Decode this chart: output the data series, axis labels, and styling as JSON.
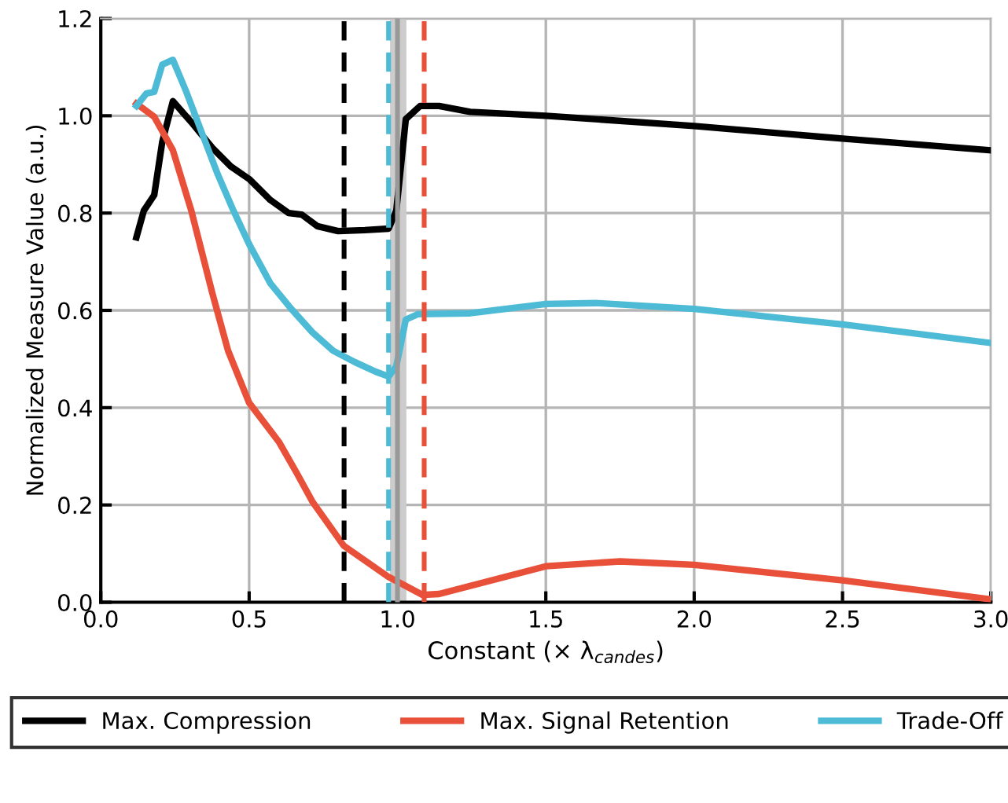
{
  "chart_data": {
    "type": "line",
    "xlabel": "Constant (× λ$_{candes}$)",
    "ylabel": "Normalized Measure Value (a.u.)",
    "xlim": [
      0,
      3
    ],
    "ylim": [
      0,
      1.2
    ],
    "xticks": [
      {
        "value": 0,
        "label": "0.0"
      },
      {
        "value": 0.5,
        "label": "0.5"
      },
      {
        "value": 1,
        "label": "1.0"
      },
      {
        "value": 1.5,
        "label": "1.5"
      },
      {
        "value": 2,
        "label": "2.0"
      },
      {
        "value": 2.5,
        "label": "2.5"
      },
      {
        "value": 3,
        "label": "3.0"
      }
    ],
    "yticks": [
      {
        "value": 0,
        "label": "0.0"
      },
      {
        "value": 0.2,
        "label": "0.2"
      },
      {
        "value": 0.4,
        "label": "0.4"
      },
      {
        "value": 0.6,
        "label": "0.6"
      },
      {
        "value": 0.8,
        "label": "0.8"
      },
      {
        "value": 1,
        "label": "1.0"
      },
      {
        "value": 1.2,
        "label": "1.2"
      }
    ],
    "grid": true,
    "legend": "bottom",
    "marker": "none",
    "line_style": "solid",
    "series": [
      {
        "name": "Max. Compression",
        "color": "#000000",
        "x": [
          0.12,
          0.145,
          0.18,
          0.207,
          0.243,
          0.305,
          0.376,
          0.438,
          0.5,
          0.571,
          0.633,
          0.677,
          0.73,
          0.8,
          0.89,
          0.97,
          0.996,
          1.028,
          1.076,
          1.14,
          1.245,
          1.5,
          2.0,
          2.5,
          3.0
        ],
        "values": [
          0.75,
          0.805,
          0.837,
          0.946,
          1.03,
          0.987,
          0.934,
          0.896,
          0.87,
          0.827,
          0.8,
          0.797,
          0.773,
          0.763,
          0.765,
          0.768,
          0.805,
          0.993,
          1.02,
          1.02,
          1.008,
          1.0,
          0.979,
          0.953,
          0.929
        ]
      },
      {
        "name": "Max. Signal Retention",
        "color": "#e8503a",
        "x": [
          0.12,
          0.18,
          0.243,
          0.305,
          0.376,
          0.429,
          0.5,
          0.6,
          0.66,
          0.713,
          0.819,
          0.97,
          1.085,
          1.14,
          1.5,
          1.75,
          2.0,
          2.5,
          3.0
        ],
        "values": [
          1.025,
          0.998,
          0.929,
          0.805,
          0.635,
          0.517,
          0.41,
          0.33,
          0.266,
          0.207,
          0.116,
          0.052,
          0.015,
          0.017,
          0.074,
          0.084,
          0.077,
          0.045,
          0.006
        ]
      },
      {
        "name": "Trade-Off",
        "color": "#4dbbd5",
        "x": [
          0.12,
          0.154,
          0.18,
          0.207,
          0.243,
          0.287,
          0.34,
          0.394,
          0.447,
          0.5,
          0.571,
          0.642,
          0.713,
          0.783,
          0.855,
          0.926,
          0.97,
          0.996,
          1.028,
          1.068,
          1.245,
          1.5,
          1.67,
          2.0,
          2.5,
          3.0
        ],
        "values": [
          1.02,
          1.046,
          1.049,
          1.105,
          1.115,
          1.051,
          0.966,
          0.88,
          0.805,
          0.736,
          0.656,
          0.603,
          0.555,
          0.517,
          0.494,
          0.474,
          0.464,
          0.485,
          0.581,
          0.592,
          0.594,
          0.613,
          0.615,
          0.603,
          0.571,
          0.533
        ]
      }
    ],
    "ref_lines": [
      {
        "axis": "x",
        "value": 0.82,
        "color": "#000000",
        "line_style": "dashed"
      },
      {
        "axis": "x",
        "value": 1.0,
        "color": "#999999",
        "line_style": "solid"
      },
      {
        "axis": "x",
        "value": 0.97,
        "color": "#4dbbd5",
        "line_style": "dashed"
      },
      {
        "axis": "x",
        "value": 1.09,
        "color": "#e8503a",
        "line_style": "dashed"
      }
    ],
    "bands": [
      {
        "axis": "x",
        "from": 0.975,
        "to": 1.03,
        "color": "#cccccc"
      }
    ]
  }
}
